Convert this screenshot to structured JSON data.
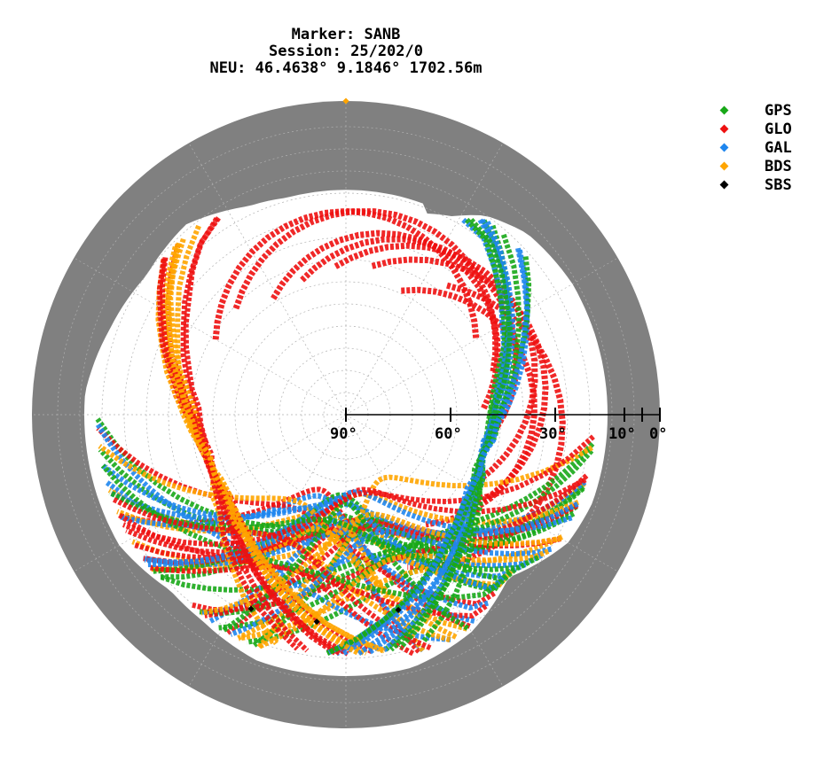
{
  "title": {
    "line1": "Marker: SANB",
    "line2": "Session: 25/202/0",
    "line3": "NEU: 46.4638° 9.1846° 1702.56m"
  },
  "chart_data": {
    "type": "scatter",
    "projection": "polar skyplot (azimuth / elevation)",
    "radial_axis": {
      "quantity": "elevation",
      "range": [
        0,
        90
      ],
      "ticks": [
        90,
        60,
        30,
        10,
        0
      ],
      "tick_labels": [
        "90°",
        "60°",
        "30°",
        "10°",
        "0°"
      ]
    },
    "grid": true,
    "legend_placement": "top-right",
    "series": [
      {
        "name": "GPS",
        "color": "#18a818"
      },
      {
        "name": "GLO",
        "color": "#ee1111"
      },
      {
        "name": "GAL",
        "color": "#1e86ee"
      },
      {
        "name": "BDS",
        "color": "#ffa500"
      },
      {
        "name": "SBS",
        "color": "#000000"
      }
    ],
    "colors": {
      "horizon_mask": "#808080",
      "grid": "#b0b0b0"
    },
    "sbs_points": [
      {
        "azimuth": 206,
        "elevation": 28
      },
      {
        "azimuth": 188,
        "elevation": 30
      },
      {
        "azimuth": 165,
        "elevation": 32
      }
    ],
    "zenith_point": {
      "azimuth": 0,
      "elevation": 0,
      "series": "BDS"
    }
  }
}
